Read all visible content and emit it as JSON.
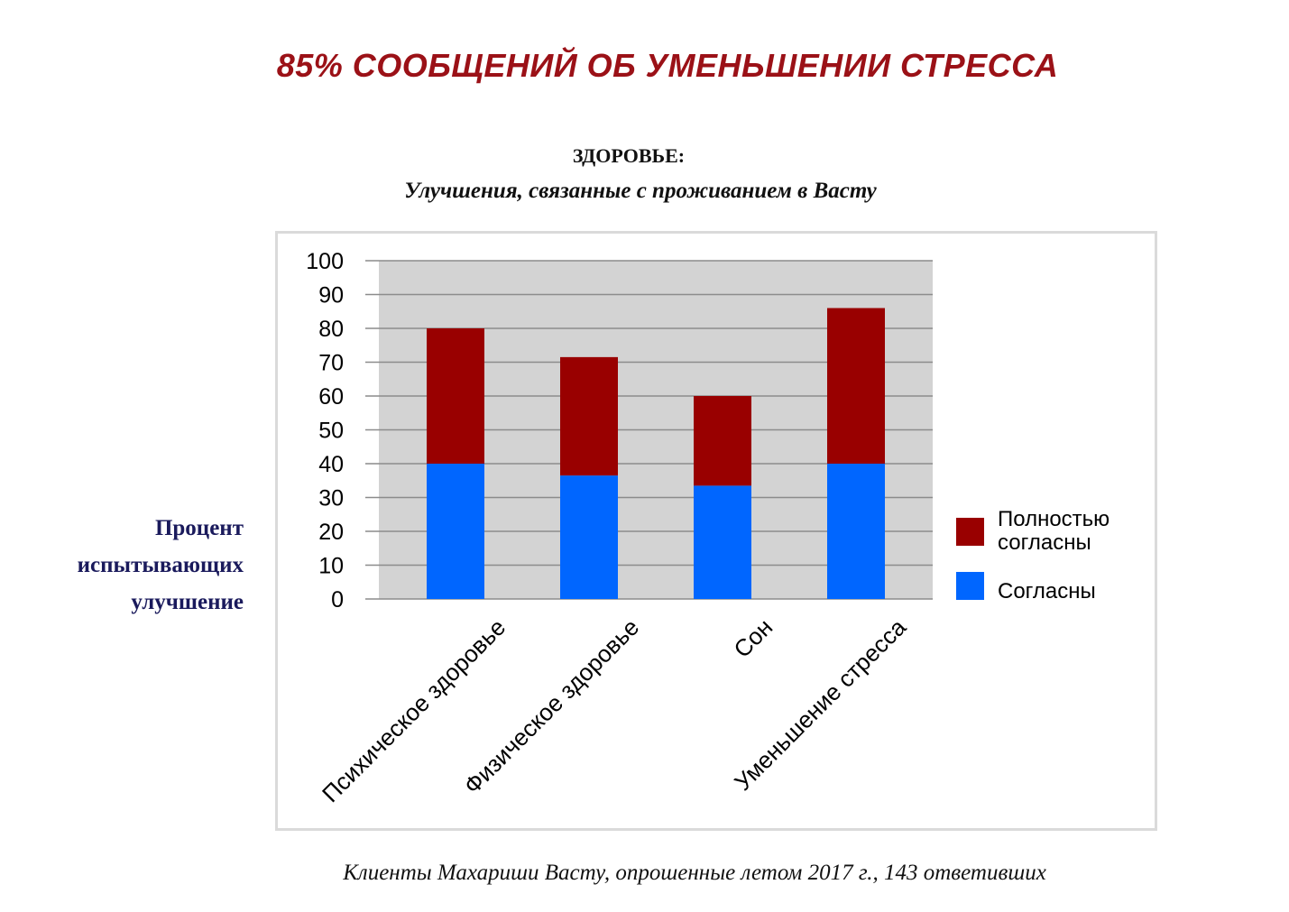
{
  "headline": "85% СООБЩЕНИЙ ОБ УМЕНЬШЕНИИ СТРЕССА",
  "footnote": "Клиенты Махариши Васту, опрошенные летом 2017 г., 143 ответивших",
  "chart_data": {
    "type": "bar",
    "stacked": true,
    "title": "ЗДОРОВЬЕ:",
    "subtitle": "Улучшения, связанные с проживанием в Васту",
    "ylabel": [
      "Процент",
      "испытывающих",
      "улучшение"
    ],
    "xlabel": "",
    "categories": [
      "Психическое здоровье",
      "Физическое здоровье",
      "Сон",
      "Уменьшение стресса"
    ],
    "series": [
      {
        "name": "Согласны",
        "values": [
          40,
          36.5,
          33.5,
          40
        ],
        "color": "#0066ff"
      },
      {
        "name": "Полностью согласны",
        "values": [
          40,
          35,
          26.5,
          46
        ],
        "color": "#990000"
      }
    ],
    "legend_entries": [
      {
        "series": 1,
        "lines": [
          "Полностью",
          "согласны"
        ]
      },
      {
        "series": 0,
        "lines": [
          "Согласны"
        ]
      }
    ],
    "ylim": [
      0,
      100
    ],
    "yticks": [
      0,
      10,
      20,
      30,
      40,
      50,
      60,
      70,
      80,
      90,
      100
    ],
    "grid": true,
    "plot_background": "#d3d3d3",
    "legend_position": "right"
  }
}
